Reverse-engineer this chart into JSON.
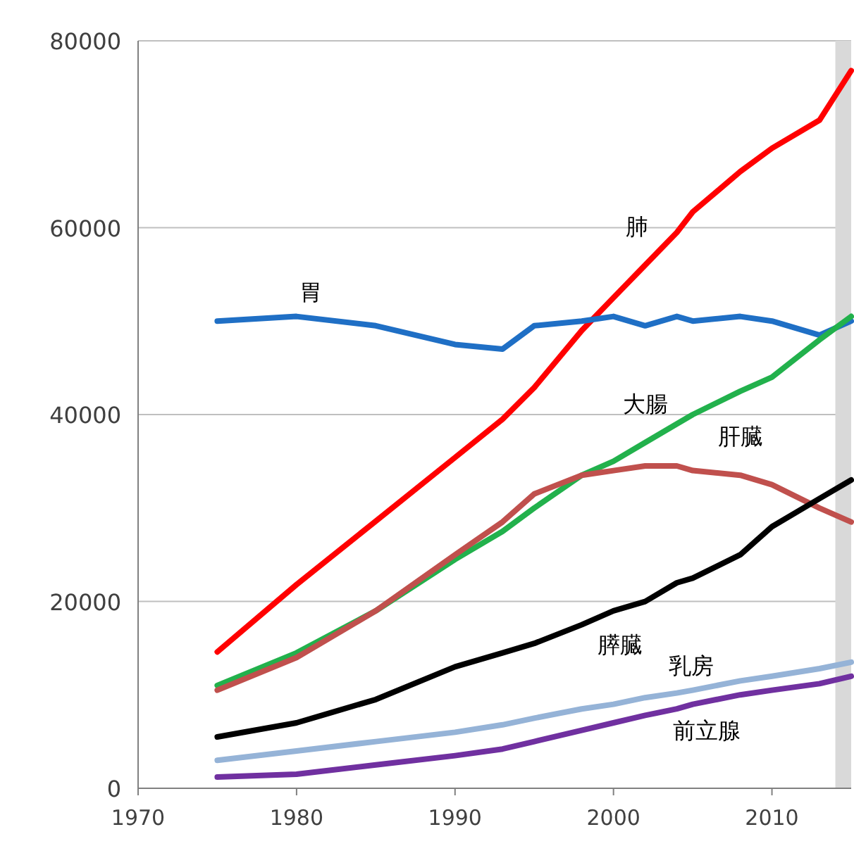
{
  "chart_data": {
    "type": "line",
    "x": [
      1975,
      1980,
      1985,
      1990,
      1993,
      1995,
      1998,
      2000,
      2002,
      2004,
      2005,
      2008,
      2010,
      2013,
      2015
    ],
    "series": [
      {
        "name": "肺",
        "color": "#ff0000",
        "values": [
          14600,
          21800,
          28600,
          35400,
          39500,
          42900,
          49000,
          52500,
          56000,
          59500,
          61700,
          66000,
          68500,
          71500,
          76800
        ]
      },
      {
        "name": "胃",
        "color": "#1f6fc5",
        "values": [
          50000,
          50500,
          49500,
          47500,
          47000,
          49500,
          50000,
          50500,
          49500,
          50500,
          50000,
          50500,
          50000,
          48500,
          50000
        ]
      },
      {
        "name": "大腸",
        "color": "#22b14c",
        "values": [
          11000,
          14500,
          19000,
          24500,
          27500,
          30000,
          33500,
          35000,
          37000,
          39000,
          40000,
          42500,
          44000,
          48000,
          50500
        ]
      },
      {
        "name": "肝臓",
        "color": "#c0504d",
        "values": [
          10500,
          14000,
          19000,
          25000,
          28500,
          31500,
          33500,
          34000,
          34500,
          34500,
          34000,
          33500,
          32500,
          30000,
          28500
        ]
      },
      {
        "name": "膵臓",
        "color": "#000000",
        "values": [
          5500,
          7000,
          9500,
          13000,
          14500,
          15500,
          17500,
          19000,
          20000,
          22000,
          22500,
          25000,
          28000,
          31000,
          33000
        ]
      },
      {
        "name": "乳房",
        "color": "#95b3d7",
        "values": [
          3000,
          4000,
          5000,
          6000,
          6800,
          7500,
          8500,
          9000,
          9700,
          10200,
          10500,
          11500,
          12000,
          12800,
          13500
        ]
      },
      {
        "name": "前立腺",
        "color": "#7030a0",
        "values": [
          1200,
          1500,
          2500,
          3500,
          4200,
          5000,
          6200,
          7000,
          7800,
          8500,
          9000,
          10000,
          10500,
          11200,
          12000
        ]
      }
    ],
    "xlim": [
      1970,
      2015
    ],
    "xticks": [
      1970,
      1980,
      1990,
      2000,
      2010
    ],
    "ylim": [
      0,
      80000
    ],
    "yticks": [
      0,
      20000,
      40000,
      60000,
      80000
    ],
    "grid": "y",
    "bands": [
      {
        "axis": "x",
        "from": 2014,
        "to": 2015,
        "color": "#d9d9d9"
      }
    ]
  }
}
